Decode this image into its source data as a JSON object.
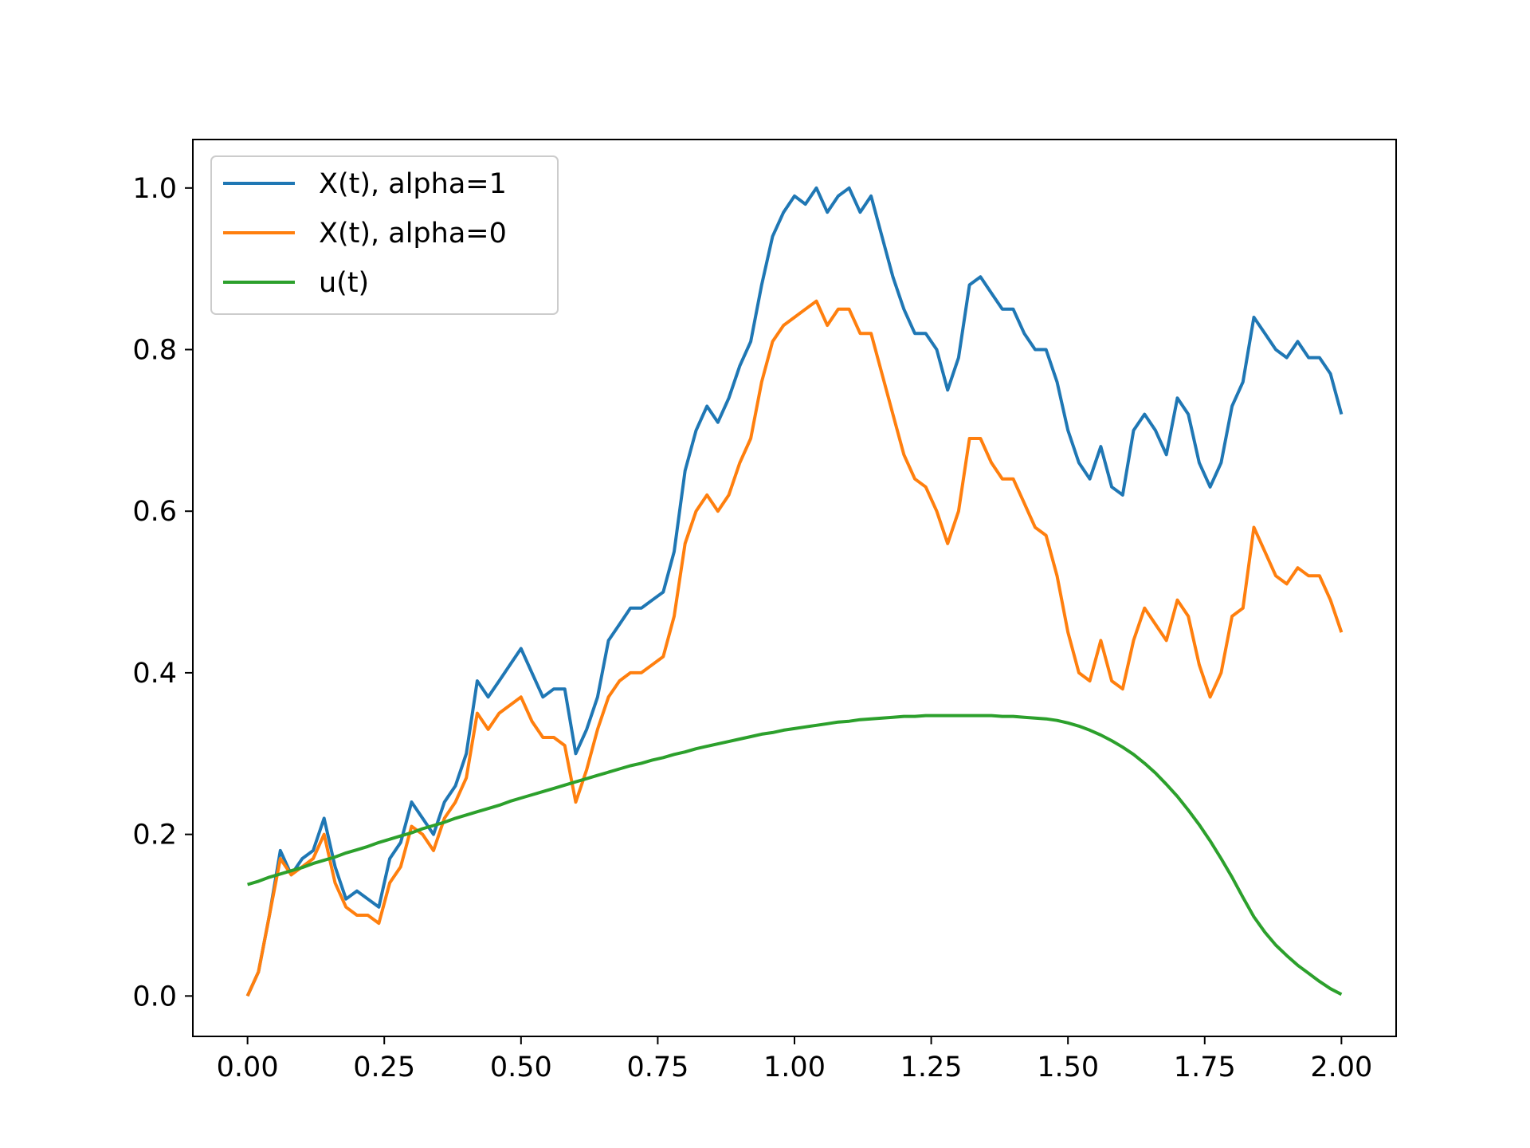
{
  "chart_data": {
    "type": "line",
    "title": "",
    "xlabel": "",
    "ylabel": "",
    "xlim": [
      -0.1,
      2.1
    ],
    "ylim": [
      -0.05,
      1.06
    ],
    "x_ticks": [
      0.0,
      0.25,
      0.5,
      0.75,
      1.0,
      1.25,
      1.5,
      1.75,
      2.0
    ],
    "x_tick_labels": [
      "0.00",
      "0.25",
      "0.50",
      "0.75",
      "1.00",
      "1.25",
      "1.50",
      "1.75",
      "2.00"
    ],
    "y_ticks": [
      0.0,
      0.2,
      0.4,
      0.6,
      0.8,
      1.0
    ],
    "y_tick_labels": [
      "0.0",
      "0.2",
      "0.4",
      "0.6",
      "0.8",
      "1.0"
    ],
    "grid": false,
    "legend_position": "top-left",
    "x": [
      0.0,
      0.02,
      0.04,
      0.06,
      0.08,
      0.1,
      0.12,
      0.14,
      0.16,
      0.18,
      0.2,
      0.22,
      0.24,
      0.26,
      0.28,
      0.3,
      0.32,
      0.34,
      0.36,
      0.38,
      0.4,
      0.42,
      0.44,
      0.46,
      0.48,
      0.5,
      0.52,
      0.54,
      0.56,
      0.58,
      0.6,
      0.62,
      0.64,
      0.66,
      0.68,
      0.7,
      0.72,
      0.74,
      0.76,
      0.78,
      0.8,
      0.82,
      0.84,
      0.86,
      0.88,
      0.9,
      0.92,
      0.94,
      0.96,
      0.98,
      1.0,
      1.02,
      1.04,
      1.06,
      1.08,
      1.1,
      1.12,
      1.14,
      1.16,
      1.18,
      1.2,
      1.22,
      1.24,
      1.26,
      1.28,
      1.3,
      1.32,
      1.34,
      1.36,
      1.38,
      1.4,
      1.42,
      1.44,
      1.46,
      1.48,
      1.5,
      1.52,
      1.54,
      1.56,
      1.58,
      1.6,
      1.62,
      1.64,
      1.66,
      1.68,
      1.7,
      1.72,
      1.74,
      1.76,
      1.78,
      1.8,
      1.82,
      1.84,
      1.86,
      1.88,
      1.9,
      1.92,
      1.94,
      1.96,
      1.98,
      2.0
    ],
    "series": [
      {
        "name": "X(t), alpha=1",
        "color": "#1f77b4",
        "values": [
          0.0,
          0.03,
          0.1,
          0.18,
          0.15,
          0.17,
          0.18,
          0.22,
          0.16,
          0.12,
          0.13,
          0.12,
          0.11,
          0.17,
          0.19,
          0.24,
          0.22,
          0.2,
          0.24,
          0.26,
          0.3,
          0.39,
          0.37,
          0.39,
          0.41,
          0.43,
          0.4,
          0.37,
          0.38,
          0.38,
          0.3,
          0.33,
          0.37,
          0.44,
          0.46,
          0.48,
          0.48,
          0.49,
          0.5,
          0.55,
          0.65,
          0.7,
          0.73,
          0.71,
          0.74,
          0.78,
          0.81,
          0.88,
          0.94,
          0.97,
          0.99,
          0.98,
          1.0,
          0.97,
          0.99,
          1.0,
          0.97,
          0.99,
          0.94,
          0.89,
          0.85,
          0.82,
          0.82,
          0.8,
          0.75,
          0.79,
          0.88,
          0.89,
          0.87,
          0.85,
          0.85,
          0.82,
          0.8,
          0.8,
          0.76,
          0.7,
          0.66,
          0.64,
          0.68,
          0.63,
          0.62,
          0.7,
          0.72,
          0.7,
          0.67,
          0.74,
          0.72,
          0.66,
          0.63,
          0.66,
          0.73,
          0.76,
          0.84,
          0.82,
          0.8,
          0.79,
          0.81,
          0.79,
          0.79,
          0.77,
          0.72
        ]
      },
      {
        "name": "X(t), alpha=0",
        "color": "#ff7f0e",
        "values": [
          0.0,
          0.03,
          0.1,
          0.17,
          0.15,
          0.16,
          0.17,
          0.2,
          0.14,
          0.11,
          0.1,
          0.1,
          0.09,
          0.14,
          0.16,
          0.21,
          0.2,
          0.18,
          0.22,
          0.24,
          0.27,
          0.35,
          0.33,
          0.35,
          0.36,
          0.37,
          0.34,
          0.32,
          0.32,
          0.31,
          0.24,
          0.28,
          0.33,
          0.37,
          0.39,
          0.4,
          0.4,
          0.41,
          0.42,
          0.47,
          0.56,
          0.6,
          0.62,
          0.6,
          0.62,
          0.66,
          0.69,
          0.76,
          0.81,
          0.83,
          0.84,
          0.85,
          0.86,
          0.83,
          0.85,
          0.85,
          0.82,
          0.82,
          0.77,
          0.72,
          0.67,
          0.64,
          0.63,
          0.6,
          0.56,
          0.6,
          0.69,
          0.69,
          0.66,
          0.64,
          0.64,
          0.61,
          0.58,
          0.57,
          0.52,
          0.45,
          0.4,
          0.39,
          0.44,
          0.39,
          0.38,
          0.44,
          0.48,
          0.46,
          0.44,
          0.49,
          0.47,
          0.41,
          0.37,
          0.4,
          0.47,
          0.48,
          0.58,
          0.55,
          0.52,
          0.51,
          0.53,
          0.52,
          0.52,
          0.49,
          0.45
        ]
      },
      {
        "name": "u(t)",
        "color": "#2ca02c",
        "values": [
          0.138,
          0.142,
          0.147,
          0.151,
          0.155,
          0.159,
          0.164,
          0.168,
          0.172,
          0.177,
          0.181,
          0.185,
          0.19,
          0.194,
          0.198,
          0.202,
          0.207,
          0.211,
          0.215,
          0.22,
          0.224,
          0.228,
          0.232,
          0.236,
          0.241,
          0.245,
          0.249,
          0.253,
          0.257,
          0.261,
          0.265,
          0.269,
          0.273,
          0.277,
          0.281,
          0.285,
          0.288,
          0.292,
          0.295,
          0.299,
          0.302,
          0.306,
          0.309,
          0.312,
          0.315,
          0.318,
          0.321,
          0.324,
          0.326,
          0.329,
          0.331,
          0.333,
          0.335,
          0.337,
          0.339,
          0.34,
          0.342,
          0.343,
          0.344,
          0.345,
          0.346,
          0.346,
          0.347,
          0.347,
          0.347,
          0.347,
          0.347,
          0.347,
          0.347,
          0.346,
          0.346,
          0.345,
          0.344,
          0.343,
          0.341,
          0.338,
          0.334,
          0.329,
          0.323,
          0.316,
          0.308,
          0.299,
          0.288,
          0.276,
          0.262,
          0.247,
          0.23,
          0.212,
          0.192,
          0.17,
          0.147,
          0.122,
          0.098,
          0.079,
          0.063,
          0.05,
          0.038,
          0.028,
          0.018,
          0.009,
          0.002
        ]
      }
    ]
  }
}
